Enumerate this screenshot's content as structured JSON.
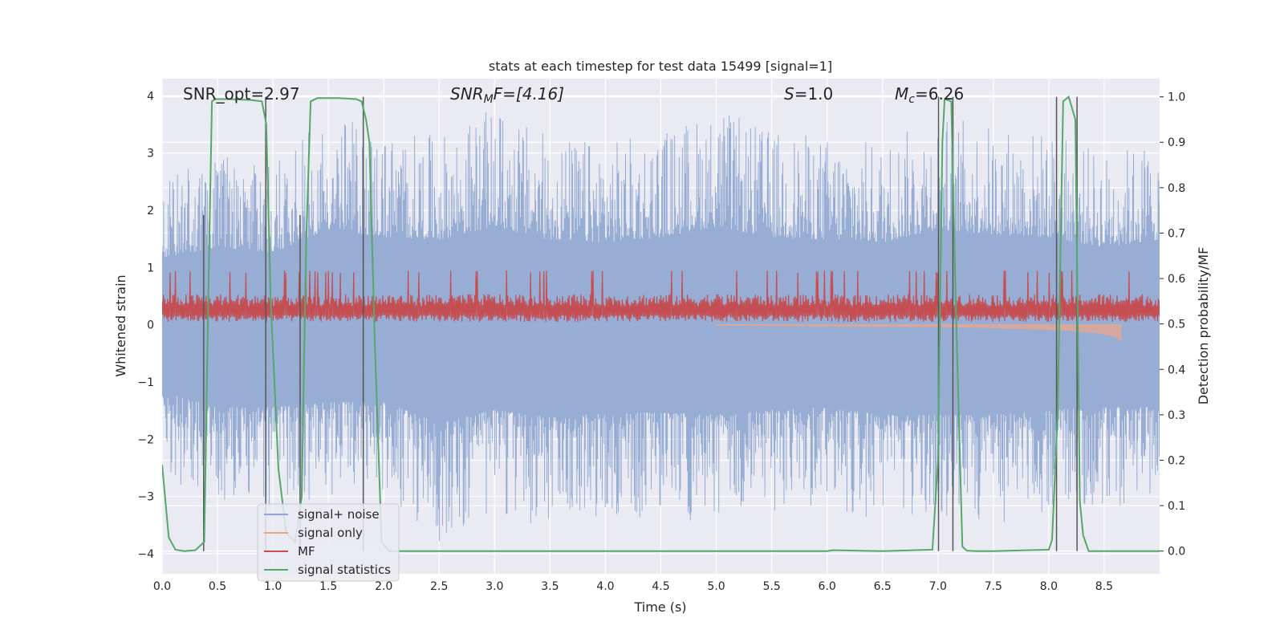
{
  "chart_data": {
    "type": "line",
    "title": "stats at each timestep for test data 15499 [signal=1]",
    "xlabel": "Time (s)",
    "ylabel": "Whitened strain",
    "ylabel_right": "Detection probability/MF",
    "xlim": [
      0.0,
      9.0
    ],
    "ylim": [
      -4.35,
      4.3
    ],
    "ylim_right": [
      -0.05,
      1.04
    ],
    "x_ticks": [
      0.0,
      0.5,
      1.0,
      1.5,
      2.0,
      2.5,
      3.0,
      3.5,
      4.0,
      4.5,
      5.0,
      5.5,
      6.0,
      6.5,
      7.0,
      7.5,
      8.0,
      8.5
    ],
    "x_tick_labels": [
      "0.0",
      "0.5",
      "1.0",
      "1.5",
      "2.0",
      "2.5",
      "3.0",
      "3.5",
      "4.0",
      "4.5",
      "5.0",
      "5.5",
      "6.0",
      "6.5",
      "7.0",
      "7.5",
      "8.0",
      "8.5"
    ],
    "y_ticks": [
      4,
      3,
      2,
      1,
      0,
      -1,
      -2,
      -3,
      -4
    ],
    "y_tick_labels": [
      "4",
      "3",
      "2",
      "1",
      "0",
      "−1",
      "−2",
      "−3",
      "−4"
    ],
    "y_right_ticks": [
      1.0,
      0.9,
      0.8,
      0.7,
      0.6,
      0.5,
      0.4,
      0.3,
      0.2,
      0.1,
      0.0
    ],
    "y_right_tick_labels": [
      "1.0",
      "0.9",
      "0.8",
      "0.7",
      "0.6",
      "0.5",
      "0.4",
      "0.3",
      "0.2",
      "0.1",
      "0.0"
    ],
    "annotations": {
      "snr_opt": "SNR_opt=2.97",
      "snr_mf_sym": "SNR",
      "snr_mf_sub": "M",
      "snr_mf_rest": "F=[4.16]",
      "s_sym": "S",
      "s_rest": "=1.0",
      "mc_sym": "M",
      "mc_sub": "c",
      "mc_rest": "=6.26"
    },
    "grid": true,
    "legend_position": "lower-left",
    "legend": [
      {
        "label": "signal+ noise",
        "color": "#8fa6d0"
      },
      {
        "label": "signal only",
        "color": "#e8a58d"
      },
      {
        "label": "MF",
        "color": "#c44e52"
      },
      {
        "label": "signal statistics",
        "color": "#55a868"
      }
    ],
    "series": [
      {
        "name": "signal+ noise",
        "color": "#8fa6d0",
        "envelope_upper": {
          "x": [
            0.0,
            0.5,
            1.0,
            1.5,
            2.0,
            2.5,
            3.0,
            3.5,
            4.0,
            4.5,
            5.0,
            5.5,
            6.0,
            6.5,
            7.0,
            7.5,
            8.0,
            8.5,
            9.0
          ],
          "y": [
            2.6,
            3.0,
            2.8,
            3.7,
            3.4,
            3.3,
            3.8,
            3.3,
            3.2,
            3.4,
            3.8,
            3.4,
            3.3,
            3.2,
            3.7,
            3.5,
            3.4,
            3.0,
            3.3
          ]
        },
        "envelope_lower": {
          "x": [
            0.0,
            0.5,
            1.0,
            1.5,
            2.0,
            2.5,
            3.0,
            3.5,
            4.0,
            4.5,
            5.0,
            5.5,
            6.0,
            6.5,
            7.0,
            7.5,
            8.0,
            8.5,
            9.0
          ],
          "y": [
            -2.6,
            -3.2,
            -3.2,
            -3.0,
            -3.0,
            -3.8,
            -3.3,
            -3.6,
            -3.4,
            -3.4,
            -3.5,
            -3.3,
            -3.2,
            -3.5,
            -3.5,
            -3.5,
            -3.3,
            -3.2,
            -3.2
          ]
        }
      },
      {
        "name": "signal only",
        "color": "#e8a58d",
        "x": [
          5.0,
          6.0,
          7.0,
          7.5,
          8.0,
          8.2,
          8.4,
          8.5,
          8.6,
          8.65
        ],
        "y": [
          -0.01,
          -0.02,
          -0.03,
          -0.05,
          -0.08,
          -0.1,
          -0.13,
          -0.16,
          -0.2,
          -0.28
        ]
      },
      {
        "name": "MF",
        "color": "#c44e52",
        "band_lower": 0.0,
        "band_upper_typical": 0.55,
        "band_upper_peak": 0.95
      },
      {
        "name": "signal statistics",
        "color": "#55a868",
        "x": [
          0.0,
          0.06,
          0.12,
          0.2,
          0.3,
          0.38,
          0.42,
          0.45,
          0.48,
          0.6,
          0.8,
          0.9,
          0.94,
          0.98,
          1.05,
          1.12,
          1.2,
          1.26,
          1.3,
          1.34,
          1.4,
          1.6,
          1.75,
          1.8,
          1.84,
          1.87,
          1.92,
          1.98,
          2.05,
          2.5,
          3.0,
          4.0,
          5.0,
          6.0,
          6.05,
          6.5,
          6.95,
          7.0,
          7.04,
          7.06,
          7.12,
          7.16,
          7.22,
          7.26,
          7.35,
          7.5,
          8.0,
          8.03,
          8.08,
          8.13,
          8.18,
          8.24,
          8.28,
          8.31,
          8.36,
          8.5,
          9.0
        ],
        "y": [
          0.19,
          0.03,
          0.003,
          0.0,
          0.002,
          0.02,
          0.6,
          0.99,
          0.995,
          0.995,
          0.993,
          0.99,
          0.94,
          0.55,
          0.18,
          0.04,
          0.02,
          0.12,
          0.68,
          0.99,
          0.997,
          0.997,
          0.995,
          0.99,
          0.95,
          0.9,
          0.45,
          0.02,
          0.0,
          0.0,
          0.0,
          0.0,
          0.0,
          0.0,
          0.002,
          0.0,
          0.003,
          0.2,
          0.9,
          0.995,
          0.99,
          0.55,
          0.01,
          0.001,
          0.0,
          0.0,
          0.003,
          0.025,
          0.3,
          0.99,
          1.0,
          0.95,
          0.11,
          0.035,
          0.0,
          0.0,
          0.0
        ]
      }
    ],
    "vertical_markers": [
      {
        "x": 0.375,
        "y_from": 0.0,
        "y_to": 0.74
      },
      {
        "x": 0.935,
        "y_from": 0.0,
        "y_to": 1.0
      },
      {
        "x": 1.245,
        "y_from": 0.0,
        "y_to": 0.74
      },
      {
        "x": 1.815,
        "y_from": 0.0,
        "y_to": 1.0
      },
      {
        "x": 7.005,
        "y_from": 0.0,
        "y_to": 1.0
      },
      {
        "x": 7.135,
        "y_from": 0.0,
        "y_to": 1.0
      },
      {
        "x": 8.07,
        "y_from": 0.0,
        "y_to": 1.0
      },
      {
        "x": 8.255,
        "y_from": 0.0,
        "y_to": 1.0
      }
    ]
  }
}
